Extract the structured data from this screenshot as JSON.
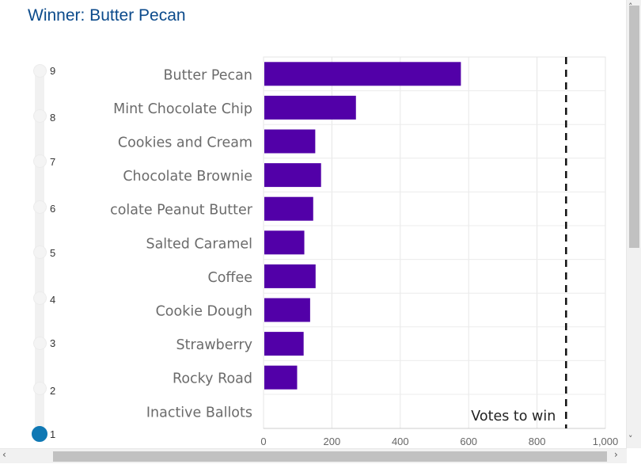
{
  "title": "Winner: Butter Pecan",
  "slider": {
    "labels": [
      "9",
      "8",
      "7",
      "6",
      "5",
      "4",
      "3",
      "2",
      "1"
    ],
    "selected": "1"
  },
  "colors": {
    "bar": "#5200a8",
    "title": "#0b4a8b",
    "slider_active": "#0f78b4"
  },
  "scrollbars": {
    "up_icon": "chevron-up-icon",
    "down_icon": "chevron-down-icon",
    "left_icon": "chevron-left-icon",
    "right_icon": "chevron-right-icon"
  },
  "chart_data": {
    "type": "bar",
    "orientation": "horizontal",
    "categories": [
      "Butter Pecan",
      "Mint Chocolate Chip",
      "Cookies and Cream",
      "Chocolate Brownie",
      "colate Peanut Butter",
      "Salted Caramel",
      "Coffee",
      "Cookie Dough",
      "Strawberry",
      "Rocky Road",
      "Inactive Ballots"
    ],
    "values": [
      575,
      268,
      149,
      166,
      143,
      117,
      150,
      134,
      115,
      96,
      0
    ],
    "xlim": [
      0,
      1000
    ],
    "xticks": [
      "0",
      "200",
      "400",
      "600",
      "800",
      "1,000"
    ],
    "grid": true,
    "threshold": {
      "value": 885,
      "label": "Votes to win",
      "style": "dashed"
    }
  }
}
